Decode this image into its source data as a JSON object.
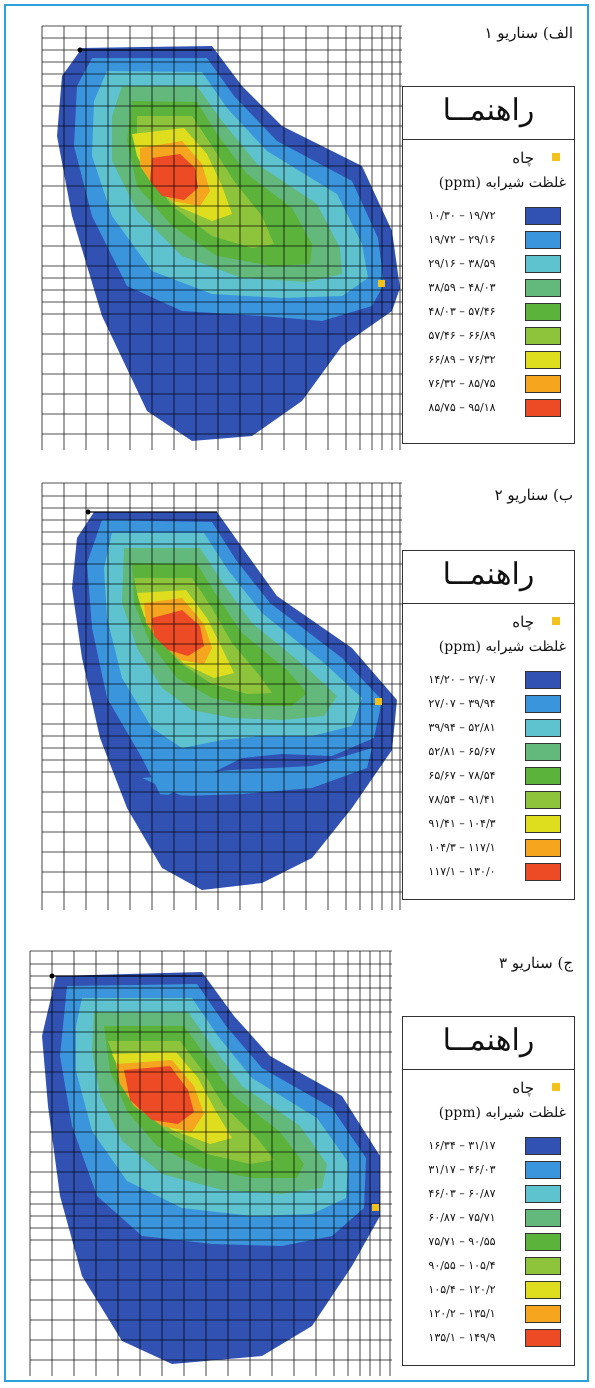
{
  "panels": [
    {
      "title": "الف) سناریو ۱",
      "legend": {
        "title": "راهنمــا",
        "well_label": "چاه",
        "concentration_title": "غلظت شیرابه (ppm)",
        "bins": [
          {
            "range": "۱۰/۳۰ – ۱۹/۷۲",
            "color": "#3151b3"
          },
          {
            "range": "۱۹/۷۲ – ۲۹/۱۶",
            "color": "#3b95dd"
          },
          {
            "range": "۲۹/۱۶ – ۳۸/۵۹",
            "color": "#5fc2cf"
          },
          {
            "range": "۳۸/۵۹ – ۴۸/۰۳",
            "color": "#63b87c"
          },
          {
            "range": "۴۸/۰۳ – ۵۷/۴۶",
            "color": "#5bb33c"
          },
          {
            "range": "۵۷/۴۶ – ۶۶/۸۹",
            "color": "#8ec33c"
          },
          {
            "range": "۶۶/۸۹ – ۷۶/۳۲",
            "color": "#dede1f"
          },
          {
            "range": "۷۶/۳۲ – ۸۵/۷۵",
            "color": "#f5a51e"
          },
          {
            "range": "۸۵/۷۵ – ۹۵/۱۸",
            "color": "#ed4a26"
          }
        ]
      }
    },
    {
      "title": "ب) سناریو ۲",
      "legend": {
        "title": "راهنمــا",
        "well_label": "چاه",
        "concentration_title": "غلظت شیرابه (ppm)",
        "bins": [
          {
            "range": "۱۴/۲۰ – ۲۷/۰۷",
            "color": "#3151b3"
          },
          {
            "range": "۲۷/۰۷ – ۳۹/۹۴",
            "color": "#3b95dd"
          },
          {
            "range": "۳۹/۹۴ – ۵۲/۸۱",
            "color": "#5fc2cf"
          },
          {
            "range": "۵۲/۸۱ – ۶۵/۶۷",
            "color": "#63b87c"
          },
          {
            "range": "۶۵/۶۷ – ۷۸/۵۴",
            "color": "#5bb33c"
          },
          {
            "range": "۷۸/۵۴ – ۹۱/۴۱",
            "color": "#8ec33c"
          },
          {
            "range": "۹۱/۴۱ – ۱۰۴/۳",
            "color": "#dede1f"
          },
          {
            "range": "۱۰۴/۳ – ۱۱۷/۱",
            "color": "#f5a51e"
          },
          {
            "range": "۱۱۷/۱ – ۱۳۰/۰",
            "color": "#ed4a26"
          }
        ]
      }
    },
    {
      "title": "ج) سناریو ۳",
      "legend": {
        "title": "راهنمــا",
        "well_label": "چاه",
        "concentration_title": "غلظت شیرابه (ppm)",
        "bins": [
          {
            "range": "۱۶/۳۴ – ۳۱/۱۷",
            "color": "#3151b3"
          },
          {
            "range": "۳۱/۱۷ – ۴۶/۰۳",
            "color": "#3b95dd"
          },
          {
            "range": "۴۶/۰۳ – ۶۰/۸۷",
            "color": "#5fc2cf"
          },
          {
            "range": "۶۰/۸۷ – ۷۵/۷۱",
            "color": "#63b87c"
          },
          {
            "range": "۷۵/۷۱ – ۹۰/۵۵",
            "color": "#5bb33c"
          },
          {
            "range": "۹۰/۵۵ – ۱۰۵/۴",
            "color": "#8ec33c"
          },
          {
            "range": "۱۰۵/۴ – ۱۲۰/۲",
            "color": "#dede1f"
          },
          {
            "range": "۱۲۰/۲ – ۱۳۵/۱",
            "color": "#f5a51e"
          },
          {
            "range": "۱۳۵/۱ – ۱۴۹/۹",
            "color": "#ed4a26"
          }
        ]
      }
    }
  ]
}
